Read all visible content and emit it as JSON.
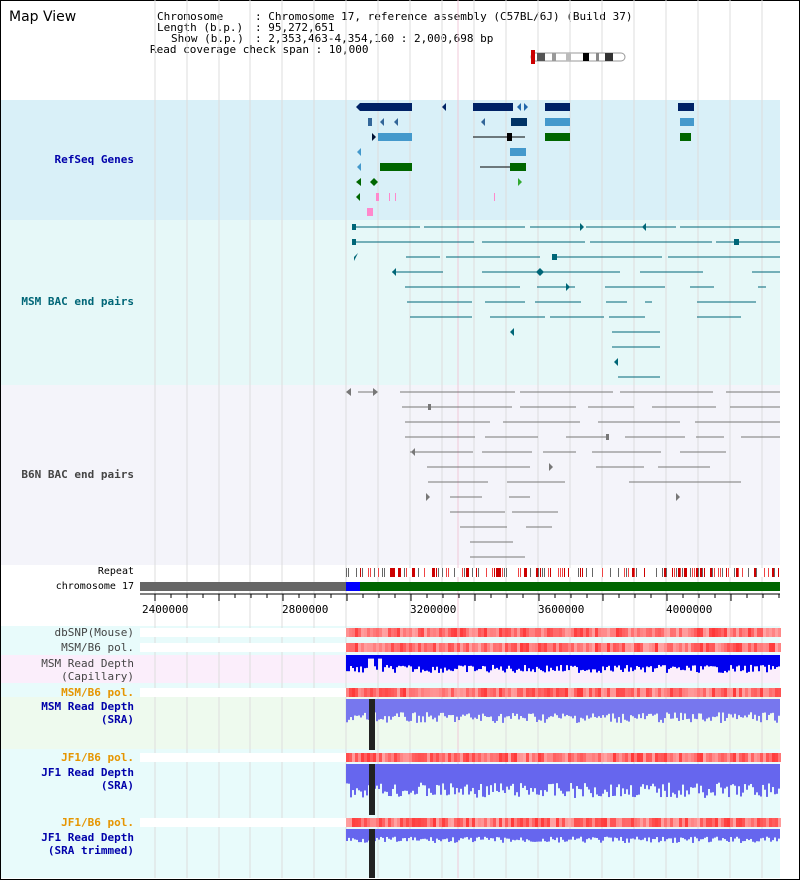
{
  "title": "Map View",
  "info": {
    "chromosome_key": "Chromosome",
    "chromosome_val": ": Chromosome 17, reference assembly (C57BL/6J) (Build 37)",
    "length_key": "Length (b.p.)",
    "length_val": ": 95,272,651",
    "show_key": "Show (b.p.)",
    "show_val": ": 2,353,463-4,354,160 : 2,000,698 bp",
    "coverage": "Read coverage check span : 10,000"
  },
  "tracks": {
    "refseq": "RefSeq Genes",
    "msm_bac": "MSM BAC end pairs",
    "b6n_bac": "B6N BAC end pairs",
    "repeat": "Repeat",
    "chromosome": "chromosome 17",
    "dbsnp": "dbSNP(Mouse)",
    "msm_b6_pol_1": "MSM/B6 pol.",
    "msm_depth_cap_1": "MSM Read Depth",
    "msm_depth_cap_2": "(Capillary)",
    "msm_b6_pol_2": "MSM/B6 pol.",
    "msm_depth_sra_1": "MSM Read Depth",
    "msm_depth_sra_2": "(SRA)",
    "jf1_b6_pol_1": "JF1/B6 pol.",
    "jf1_depth_1": "JF1 Read Depth",
    "jf1_depth_2": "(SRA)",
    "jf1_b6_pol_2": "JF1/B6 pol.",
    "jf1_trim_1": "JF1 Read Depth",
    "jf1_trim_2": "(SRA trimmed)"
  },
  "axis_ticks": [
    "2400000",
    "2800000",
    "3200000",
    "3600000",
    "4000000"
  ],
  "colors": {
    "refseq_bg": "#d9f0f8",
    "msm_bg": "#e6f8f8",
    "b6n_bg": "#f4f4fa",
    "label_blue": "#0000aa",
    "label_teal": "#006677",
    "label_gray": "#444444",
    "label_orange": "#e69500",
    "chromosome_green": "#006600",
    "chromosome_blue": "#0000ff",
    "chromosome_gray": "#666666"
  }
}
